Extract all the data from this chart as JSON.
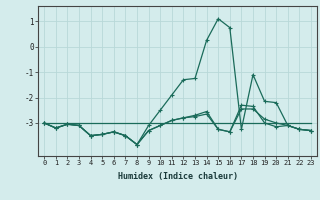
{
  "xlabel": "Humidex (Indice chaleur)",
  "x": [
    0,
    1,
    2,
    3,
    4,
    5,
    6,
    7,
    8,
    9,
    10,
    11,
    12,
    13,
    14,
    15,
    16,
    17,
    18,
    19,
    20,
    21,
    22,
    23
  ],
  "line1": [
    -3.0,
    -3.2,
    -3.05,
    -3.1,
    -3.5,
    -3.45,
    -3.35,
    -3.5,
    -3.85,
    -3.1,
    -2.5,
    -1.9,
    -1.3,
    -1.25,
    0.25,
    1.1,
    0.75,
    -3.25,
    -1.1,
    -2.15,
    -2.2,
    -3.1,
    -3.25,
    -3.3
  ],
  "line2": [
    -3.0,
    -3.2,
    -3.05,
    -3.1,
    -3.5,
    -3.45,
    -3.35,
    -3.5,
    -3.85,
    -3.3,
    -3.1,
    -2.9,
    -2.8,
    -2.75,
    -2.65,
    -3.25,
    -3.35,
    -2.3,
    -2.35,
    -3.0,
    -3.15,
    -3.1,
    -3.25,
    -3.3
  ],
  "line3": [
    -3.0,
    -3.2,
    -3.05,
    -3.1,
    -3.5,
    -3.45,
    -3.35,
    -3.5,
    -3.85,
    -3.3,
    -3.1,
    -2.9,
    -2.8,
    -2.7,
    -2.55,
    -3.25,
    -3.35,
    -2.45,
    -2.45,
    -2.85,
    -3.0,
    -3.1,
    -3.25,
    -3.3
  ],
  "line4": [
    -3.0,
    -3.0,
    -3.0,
    -3.0,
    -3.0,
    -3.0,
    -3.0,
    -3.0,
    -3.0,
    -3.0,
    -3.0,
    -3.0,
    -3.0,
    -3.0,
    -3.0,
    -3.0,
    -3.0,
    -3.0,
    -3.0,
    -3.0,
    -3.0,
    -3.0,
    -3.0,
    -3.0
  ],
  "color": "#1a6b5a",
  "bg_color": "#d4ecec",
  "grid_color": "#b8d8d8",
  "ylim": [
    -4.3,
    1.6
  ],
  "yticks": [
    -3,
    -2,
    -1,
    0,
    1
  ],
  "xlim": [
    -0.5,
    23.5
  ],
  "figsize": [
    3.2,
    2.0
  ],
  "dpi": 100
}
